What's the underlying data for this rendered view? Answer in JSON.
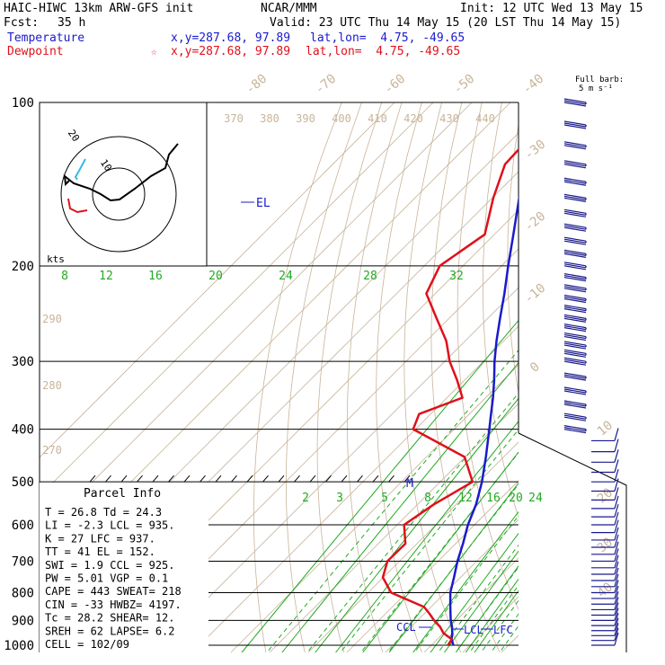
{
  "header": {
    "model": "HAIC-HIWC 13km ARW-GFS init",
    "org": "NCAR/MMM",
    "init": "Init: 12 UTC Wed 13 May 15",
    "fcst_label": "Fcst:",
    "fcst_value": "35 h",
    "valid": "Valid: 23 UTC Thu 14 May 15 (20 LST Thu 14 May 15)"
  },
  "legend": {
    "temp_label": "Temperature",
    "temp_xy": "x,y=287.68, 97.89",
    "temp_latlon": "lat,lon=  4.75, -49.65",
    "dew_label": "Dewpoint",
    "dew_marker": "☆",
    "dew_xy": "x,y=287.68, 97.89",
    "dew_latlon": "lat,lon=  4.75, -49.65"
  },
  "barb_key": {
    "line1": "Full barb:",
    "line2": "5 m s⁻¹"
  },
  "colors": {
    "temperature": "#1a1acc",
    "dewpoint": "#e0101a",
    "mixing_ratio": "#22aa22",
    "adiabat": "#c8b49a",
    "isobar": "#000000",
    "wind": "#1a1a8c"
  },
  "hodograph": {
    "kts_label": "kts",
    "ring_labels": [
      "20",
      "10"
    ]
  },
  "parcel_info": {
    "title": "Parcel Info",
    "rows": [
      "T   =   26.8  Td =   24.3",
      "LI  =   -2.3  LCL =  935.",
      "K   =     27  LFC =  937.",
      "TT  =     41  EL  =  152.",
      "SWI =    1.9  CCL =  925.",
      "PW  =   5.01  VGP =   0.1",
      "CAPE =   443  SWEAT=  218",
      "CIN  =   -33  HWBZ= 4197.",
      "Tc   =  28.2  SHEAR=  12.",
      "SREH =    62  LAPSE=  6.2",
      "CELL = 102/09"
    ]
  },
  "chart_data": {
    "type": "skew-t",
    "pressure_levels": [
      100,
      200,
      300,
      400,
      500,
      600,
      700,
      800,
      900,
      1000
    ],
    "pressure_labels": [
      "100",
      "200",
      "300",
      "400",
      "500",
      "600",
      "700",
      "800",
      "900",
      "1000"
    ],
    "top_temperature_labels": [
      "-80",
      "-70",
      "-60",
      "-50",
      "-40"
    ],
    "right_temperature_labels": [
      "-30",
      "-20",
      "-10",
      "0",
      "10",
      "20",
      "30",
      "40"
    ],
    "adiabat_labels": [
      "370",
      "380",
      "390",
      "400",
      "410",
      "420",
      "430",
      "440",
      "290",
      "280",
      "270"
    ],
    "mixing_ratio_upper": [
      "8",
      "12",
      "16",
      "20",
      "24",
      "28",
      "32"
    ],
    "mixing_ratio_lower": [
      "2",
      "3",
      "5",
      "8",
      "12",
      "16",
      "20",
      "24"
    ],
    "level_markers": {
      "el": "EL",
      "m": "M",
      "ccl": "CCL",
      "lcl": "LCL",
      "lfc": "LFC"
    },
    "temperature": {
      "name": "Temperature",
      "p": [
        1000,
        975,
        950,
        925,
        900,
        875,
        850,
        800,
        750,
        700,
        650,
        600,
        550,
        500,
        450,
        400,
        375,
        350,
        325,
        300,
        275,
        250,
        225,
        200,
        175,
        150,
        130,
        115,
        100
      ],
      "t": [
        25.7,
        23.7,
        22.3,
        20.6,
        18.6,
        16.8,
        15.0,
        11.3,
        8.3,
        5.0,
        1.9,
        -1.7,
        -4.9,
        -9.2,
        -14.6,
        -20.9,
        -24.4,
        -28.1,
        -32.3,
        -37.1,
        -41.9,
        -46.8,
        -52.1,
        -58.3,
        -65.1,
        -73.0,
        -79.2,
        -83.9,
        -86.3
      ]
    },
    "dewpoint": {
      "name": "Dewpoint",
      "p": [
        1000,
        975,
        950,
        925,
        900,
        875,
        850,
        800,
        750,
        700,
        650,
        600,
        550,
        500,
        450,
        400,
        375,
        350,
        325,
        300,
        275,
        250,
        225,
        200,
        175,
        150,
        130,
        115,
        100
      ],
      "td": [
        24.3,
        23.7,
        20.0,
        17.5,
        14.3,
        11.4,
        8.2,
        -4.0,
        -10.1,
        -13.1,
        -13.0,
        -18.2,
        -15.8,
        -11.6,
        -20.1,
        -40.6,
        -43.0,
        -36.0,
        -41.9,
        -48.7,
        -54.9,
        -63.2,
        -72.3,
        -76.0,
        -72.5,
        -79.7,
        -85.4,
        -86.0,
        -89.2
      ]
    },
    "wind_levels_hpa": [
      100,
      110,
      120,
      130,
      140,
      150,
      160,
      170,
      180,
      190,
      200,
      210,
      220,
      230,
      240,
      250,
      260,
      270,
      280,
      290,
      300,
      320,
      340,
      360,
      380,
      400,
      420,
      440,
      460,
      480,
      500,
      520,
      540,
      560,
      580,
      600,
      620,
      640,
      660,
      680,
      700,
      720,
      740,
      760,
      780,
      800,
      820,
      840,
      860,
      880,
      900,
      920,
      940,
      960,
      980,
      1000
    ]
  }
}
